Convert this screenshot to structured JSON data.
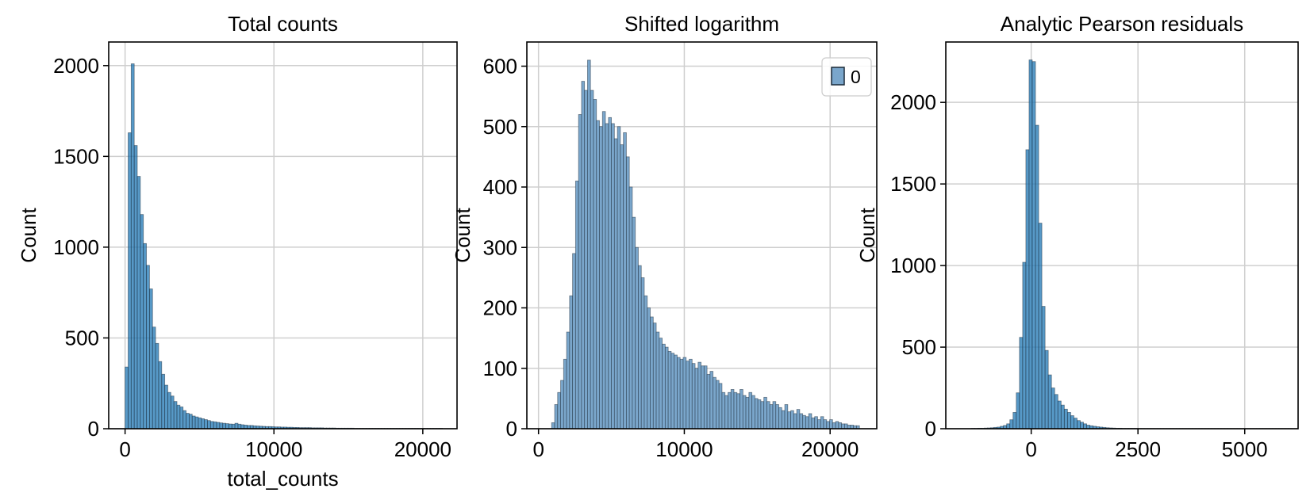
{
  "chart_data": [
    {
      "type": "bar",
      "title": "Total counts",
      "xlabel": "total_counts",
      "ylabel": "Count",
      "xlim": [
        -1100,
        22300
      ],
      "ylim": [
        0,
        2130
      ],
      "xticks": [
        0,
        10000,
        20000
      ],
      "yticks": [
        0,
        500,
        1000,
        1500,
        2000
      ],
      "grid": true,
      "color": "#1f77b4",
      "alpha": 0.75,
      "bin_start": 0,
      "bin_width": 205,
      "counts": [
        340,
        1630,
        2010,
        1560,
        1390,
        1180,
        1020,
        900,
        770,
        560,
        470,
        370,
        300,
        240,
        200,
        180,
        150,
        130,
        120,
        100,
        85,
        80,
        70,
        65,
        60,
        55,
        50,
        45,
        40,
        38,
        35,
        32,
        30,
        28,
        26,
        25,
        30,
        25,
        22,
        20,
        18,
        18,
        16,
        15,
        14,
        13,
        12,
        12,
        11,
        10,
        10,
        9,
        9,
        8,
        8,
        7,
        7,
        6,
        6,
        6,
        6,
        5,
        5,
        5,
        5,
        4,
        4,
        4,
        4,
        3,
        3,
        3,
        3,
        3,
        3,
        2,
        2,
        2,
        2,
        2,
        2,
        2,
        2,
        2,
        2,
        2,
        2,
        2,
        2,
        2,
        2,
        2,
        2,
        2,
        2,
        2,
        2,
        2,
        2,
        2,
        2,
        2,
        2,
        2
      ],
      "legend": null
    },
    {
      "type": "bar",
      "title": "Shifted logarithm",
      "xlabel": "",
      "ylabel": "Count",
      "xlim": [
        -800,
        23200
      ],
      "ylim": [
        0,
        640
      ],
      "xticks": [
        0,
        10000,
        20000
      ],
      "yticks": [
        0,
        100,
        200,
        300,
        400,
        500,
        600
      ],
      "grid": true,
      "color": "#7aa6cb",
      "alpha": 1,
      "bin_start": 900,
      "bin_width": 205,
      "counts": [
        10,
        40,
        60,
        80,
        115,
        160,
        220,
        290,
        410,
        520,
        575,
        560,
        610,
        560,
        545,
        510,
        500,
        525,
        505,
        515,
        505,
        480,
        500,
        470,
        490,
        450,
        400,
        350,
        300,
        270,
        250,
        220,
        200,
        185,
        175,
        160,
        150,
        140,
        135,
        128,
        125,
        122,
        118,
        115,
        118,
        112,
        115,
        108,
        100,
        110,
        104,
        104,
        90,
        95,
        85,
        80,
        75,
        60,
        55,
        60,
        65,
        60,
        58,
        65,
        55,
        52,
        60,
        55,
        50,
        48,
        45,
        52,
        45,
        40,
        45,
        40,
        35,
        30,
        40,
        28,
        30,
        25,
        32,
        25,
        22,
        20,
        25,
        18,
        20,
        15,
        20,
        15,
        12,
        15,
        10,
        12,
        10,
        8,
        8,
        6,
        6,
        5,
        5
      ],
      "legend": [
        "0"
      ]
    },
    {
      "type": "bar",
      "title": "Analytic Pearson residuals",
      "xlabel": "",
      "ylabel": "Count",
      "xlim": [
        -2000,
        6250
      ],
      "ylim": [
        0,
        2370
      ],
      "xticks": [
        0,
        2500,
        5000
      ],
      "yticks": [
        0,
        500,
        1000,
        1500,
        2000
      ],
      "grid": true,
      "color": "#1f77b4",
      "alpha": 0.75,
      "bin_start": -1400,
      "bin_width": 75,
      "counts": [
        2,
        2,
        3,
        3,
        4,
        5,
        6,
        8,
        10,
        15,
        20,
        30,
        55,
        100,
        220,
        560,
        1020,
        1710,
        2260,
        2250,
        1860,
        1260,
        750,
        480,
        330,
        250,
        210,
        170,
        145,
        120,
        100,
        80,
        65,
        50,
        40,
        30,
        22,
        18,
        15,
        12,
        10,
        8,
        6,
        5,
        4,
        3,
        3,
        2,
        2,
        2,
        2,
        2,
        1,
        1,
        1,
        1,
        1,
        1,
        1,
        1,
        1,
        1,
        1,
        1,
        1,
        1,
        1,
        1,
        1,
        1,
        1,
        1,
        1,
        1,
        1,
        1,
        1,
        1,
        1,
        1,
        1,
        1,
        1,
        1,
        1,
        1,
        1,
        1,
        1,
        1,
        1,
        1,
        1,
        1,
        1,
        1,
        1,
        1,
        1,
        1
      ],
      "legend": null
    }
  ]
}
